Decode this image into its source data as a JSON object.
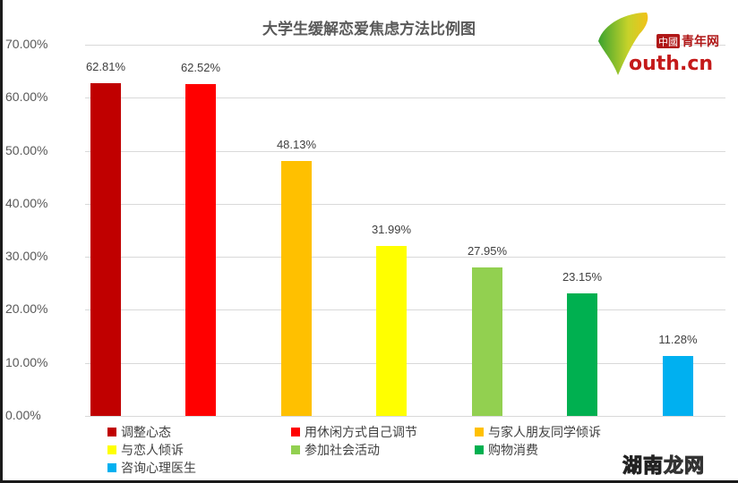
{
  "chart_data": {
    "type": "bar",
    "title": "大学生缓解恋爱焦虑方法比例图",
    "xlabel": "",
    "ylabel": "",
    "ylim": [
      0,
      70
    ],
    "yticks": [
      "0.00%",
      "10.00%",
      "20.00%",
      "30.00%",
      "40.00%",
      "50.00%",
      "60.00%",
      "70.00%"
    ],
    "grid": true,
    "legend_position": "bottom",
    "categories": [
      "调整心态",
      "用休闲方式自己调节",
      "与家人朋友同学倾诉",
      "与恋人倾诉",
      "参加社会活动",
      "购物消费",
      "咨询心理医生"
    ],
    "values": [
      62.81,
      62.52,
      48.13,
      31.99,
      27.95,
      23.15,
      11.28
    ],
    "value_labels": [
      "62.81%",
      "62.52%",
      "48.13%",
      "31.99%",
      "27.95%",
      "23.15%",
      "11.28%"
    ],
    "colors": [
      "#c00000",
      "#ff0000",
      "#ffc000",
      "#ffff00",
      "#92d050",
      "#00b050",
      "#00b0f0"
    ]
  },
  "logo": {
    "badge": "中國",
    "name": "青年网",
    "domain": "outh.cn"
  },
  "watermark": {
    "part1": "湖南",
    "part2": "龙网"
  }
}
